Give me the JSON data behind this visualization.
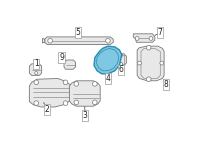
{
  "bg_color": "#ffffff",
  "part_line_color": "#666666",
  "highlight_fill": "#7ec8e3",
  "highlight_edge": "#2a8ab0",
  "gray_fill": "#e8e8e8",
  "gray_edge": "#777777",
  "label_color": "#222222",
  "label_fontsize": 5.5,
  "figsize": [
    2.0,
    1.47
  ],
  "dpi": 100
}
